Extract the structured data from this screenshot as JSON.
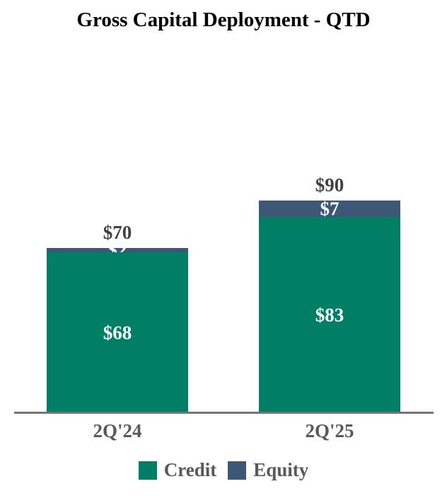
{
  "chart_data": {
    "type": "bar",
    "stacked": true,
    "title": "Gross Capital Deployment - QTD",
    "categories": [
      "2Q'24",
      "2Q'25"
    ],
    "series": [
      {
        "name": "Credit",
        "color": "#007F66",
        "values": [
          68,
          83
        ],
        "labels": [
          "$68",
          "$83"
        ]
      },
      {
        "name": "Equity",
        "color": "#3C5876",
        "values": [
          2,
          7
        ],
        "labels": [
          "$2",
          "$7"
        ]
      }
    ],
    "totals": [
      70,
      90
    ],
    "total_labels": [
      "$70",
      "$90"
    ],
    "legend_position": "bottom",
    "grid": false,
    "y_axis_visible": false,
    "colors": {
      "background": "#FFFFFF",
      "title_text": "#000000",
      "total_label_text": "#404040",
      "axis_label_text": "#595959",
      "inside_label_text": "#FFFFFF",
      "axis_line": "#757575"
    }
  }
}
